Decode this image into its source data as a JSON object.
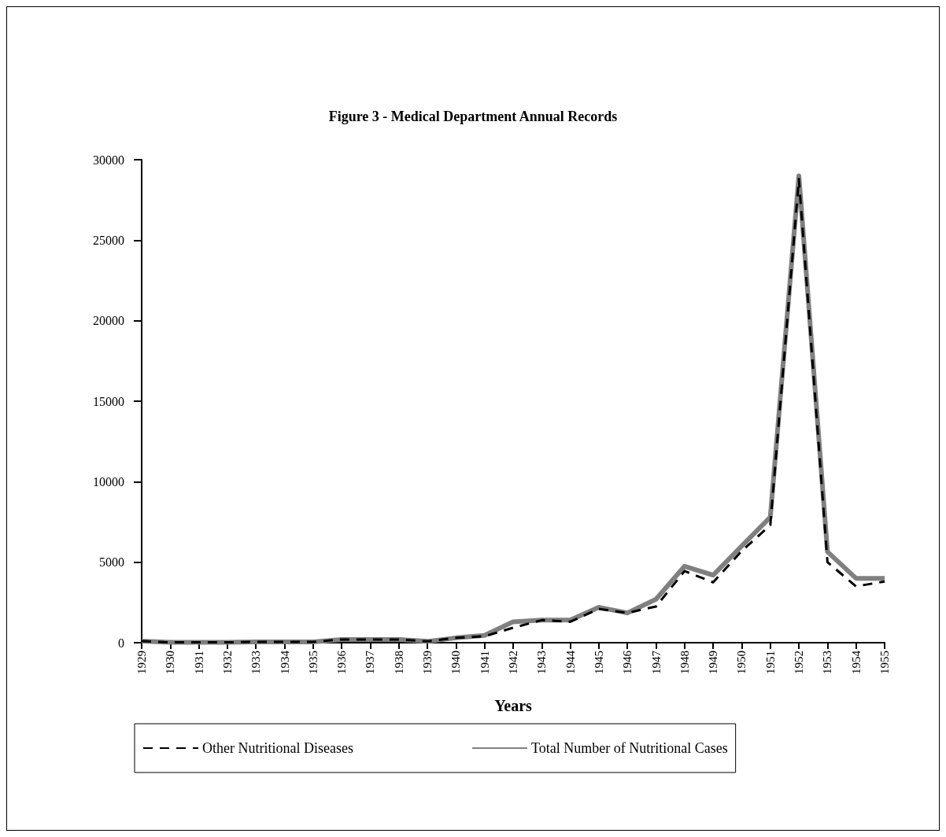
{
  "chart_data": {
    "type": "line",
    "title": "Figure 3 - Medical Department Annual Records",
    "xlabel": "Years",
    "categories": [
      "1929",
      "1930",
      "1931",
      "1932",
      "1933",
      "1934",
      "1935",
      "1936",
      "1937",
      "1938",
      "1939",
      "1940",
      "1941",
      "1942",
      "1943",
      "1944",
      "1945",
      "1946",
      "1947",
      "1948",
      "1949",
      "1950",
      "1951",
      "1952",
      "1953",
      "1954",
      "1955"
    ],
    "series": [
      {
        "name": "Other Nutritional Diseases",
        "color": "#000000",
        "line_style": "dashed",
        "values": [
          100,
          20,
          20,
          20,
          50,
          50,
          50,
          200,
          200,
          200,
          80,
          300,
          400,
          930,
          1400,
          1300,
          2100,
          1850,
          2250,
          4450,
          3750,
          5700,
          7300,
          28800,
          5000,
          3500,
          3800
        ]
      },
      {
        "name": "Total Number of Nutritional Cases",
        "color": "#808080",
        "line_style": "solid",
        "values": [
          100,
          20,
          20,
          20,
          50,
          50,
          50,
          200,
          200,
          200,
          80,
          300,
          450,
          1300,
          1400,
          1400,
          2200,
          1850,
          2700,
          4750,
          4200,
          6000,
          7800,
          29000,
          5650,
          4000,
          4000
        ]
      }
    ],
    "ylim": [
      0,
      30000
    ],
    "yticks": [
      0,
      5000,
      10000,
      15000,
      20000,
      25000,
      30000
    ],
    "grid": false,
    "legend": "bottom",
    "marker": "none"
  }
}
